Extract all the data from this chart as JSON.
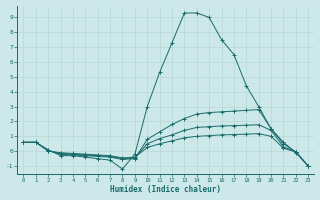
{
  "xlabel": "Humidex (Indice chaleur)",
  "ylabel": "",
  "bg_color": "#cce8e8",
  "line_color": "#1a6b6b",
  "grid_color": "#b8d8d8",
  "xlim": [
    -0.5,
    23.5
  ],
  "ylim": [
    -1.5,
    9.8
  ],
  "xticks": [
    0,
    1,
    2,
    3,
    4,
    5,
    6,
    7,
    8,
    9,
    10,
    11,
    12,
    13,
    14,
    15,
    16,
    17,
    18,
    19,
    20,
    21,
    22,
    23
  ],
  "yticks": [
    -1,
    0,
    1,
    2,
    3,
    4,
    5,
    6,
    7,
    8,
    9
  ],
  "lines": [
    {
      "x": [
        0,
        1,
        2,
        3,
        4,
        5,
        6,
        7,
        8,
        9,
        10,
        11,
        12,
        13,
        14,
        15,
        16,
        17,
        18,
        19,
        20,
        21,
        22,
        23
      ],
      "y": [
        0.6,
        0.6,
        0.1,
        -0.3,
        -0.3,
        -0.4,
        -0.5,
        -0.6,
        -1.2,
        -0.2,
        3.0,
        5.3,
        7.3,
        9.3,
        9.3,
        9.0,
        7.5,
        6.5,
        4.4,
        3.0,
        1.5,
        0.6,
        -0.1,
        -1.0
      ]
    },
    {
      "x": [
        0,
        1,
        2,
        3,
        4,
        5,
        6,
        7,
        8,
        9,
        10,
        11,
        12,
        13,
        14,
        15,
        16,
        17,
        18,
        19,
        20,
        21,
        22,
        23
      ],
      "y": [
        0.6,
        0.6,
        0.05,
        -0.2,
        -0.25,
        -0.3,
        -0.35,
        -0.4,
        -0.55,
        -0.5,
        0.8,
        1.3,
        1.8,
        2.2,
        2.5,
        2.6,
        2.65,
        2.7,
        2.75,
        2.8,
        1.5,
        0.5,
        -0.05,
        -1.0
      ]
    },
    {
      "x": [
        0,
        1,
        2,
        3,
        4,
        5,
        6,
        7,
        8,
        9,
        10,
        11,
        12,
        13,
        14,
        15,
        16,
        17,
        18,
        19,
        20,
        21,
        22,
        23
      ],
      "y": [
        0.6,
        0.6,
        0.03,
        -0.15,
        -0.2,
        -0.25,
        -0.3,
        -0.35,
        -0.5,
        -0.45,
        0.5,
        0.85,
        1.1,
        1.4,
        1.6,
        1.65,
        1.7,
        1.72,
        1.75,
        1.78,
        1.4,
        0.3,
        -0.05,
        -1.0
      ]
    },
    {
      "x": [
        0,
        1,
        2,
        3,
        4,
        5,
        6,
        7,
        8,
        9,
        10,
        11,
        12,
        13,
        14,
        15,
        16,
        17,
        18,
        19,
        20,
        21,
        22,
        23
      ],
      "y": [
        0.6,
        0.6,
        0.01,
        -0.1,
        -0.15,
        -0.2,
        -0.25,
        -0.3,
        -0.45,
        -0.4,
        0.25,
        0.5,
        0.7,
        0.9,
        1.0,
        1.05,
        1.1,
        1.12,
        1.15,
        1.18,
        1.0,
        0.2,
        -0.05,
        -1.0
      ]
    }
  ]
}
